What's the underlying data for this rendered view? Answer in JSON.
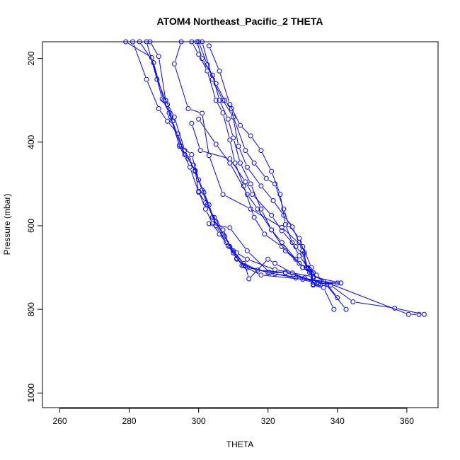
{
  "chart_data": {
    "type": "line",
    "title": "ATOM4 Northeast_Pacific_2 THETA",
    "xlabel": "THETA",
    "ylabel": "Pressure (mbar)",
    "xlim": [
      255,
      369
    ],
    "ylim": [
      1035,
      160
    ],
    "y_reversed": true,
    "x_ticks": [
      260,
      280,
      300,
      320,
      340,
      360
    ],
    "y_ticks": [
      200,
      400,
      600,
      800,
      1000
    ],
    "series_color": "#0000ff",
    "marker": "open-circle",
    "grid": false,
    "legend": "none",
    "series": [
      {
        "points": [
          [
            279,
            160
          ],
          [
            286.5,
            198
          ],
          [
            289.5,
            297
          ],
          [
            291.5,
            330
          ],
          [
            294.5,
            407
          ],
          [
            297,
            440
          ],
          [
            299,
            468
          ],
          [
            300,
            518
          ],
          [
            302,
            560
          ],
          [
            304,
            595
          ],
          [
            306,
            620
          ],
          [
            308.5,
            648
          ],
          [
            311,
            678
          ],
          [
            313,
            695
          ],
          [
            320,
            712
          ],
          [
            328,
            725
          ],
          [
            333,
            735
          ],
          [
            336,
            748
          ],
          [
            339,
            800
          ]
        ]
      },
      {
        "points": [
          [
            281,
            160
          ],
          [
            285,
            250
          ],
          [
            288.5,
            320
          ],
          [
            291,
            350
          ],
          [
            294,
            380
          ],
          [
            296,
            430
          ],
          [
            298.5,
            455
          ],
          [
            301,
            515
          ],
          [
            302.5,
            550
          ],
          [
            305,
            590
          ],
          [
            307.5,
            625
          ],
          [
            310,
            665
          ],
          [
            312.5,
            695
          ],
          [
            318,
            718
          ],
          [
            330,
            728
          ],
          [
            340,
            737
          ]
        ]
      },
      {
        "points": [
          [
            283,
            160
          ],
          [
            287,
            210
          ],
          [
            290,
            300
          ],
          [
            292,
            340
          ],
          [
            294.5,
            410
          ],
          [
            297.5,
            460
          ],
          [
            300,
            520
          ],
          [
            302,
            545
          ],
          [
            304.5,
            580
          ],
          [
            307,
            610
          ],
          [
            309,
            650
          ],
          [
            311,
            680
          ],
          [
            314,
            700
          ],
          [
            322,
            715
          ],
          [
            336,
            733
          ],
          [
            360.5,
            812
          ],
          [
            363.5,
            812
          ]
        ]
      },
      {
        "points": [
          [
            286,
            160
          ],
          [
            288.5,
            195
          ],
          [
            290.5,
            300
          ],
          [
            293,
            340
          ],
          [
            296,
            420
          ],
          [
            299,
            470
          ],
          [
            301.5,
            520
          ],
          [
            304,
            580
          ],
          [
            307,
            620
          ],
          [
            310,
            660
          ],
          [
            313,
            690
          ],
          [
            317,
            706
          ],
          [
            325,
            712
          ],
          [
            338,
            742
          ],
          [
            344.5,
            782
          ],
          [
            356.5,
            797
          ],
          [
            365,
            812
          ]
        ]
      },
      {
        "points": [
          [
            285,
            160
          ],
          [
            288,
            250
          ],
          [
            291,
            310
          ],
          [
            292.5,
            350
          ],
          [
            295,
            410
          ],
          [
            298,
            430
          ],
          [
            300,
            490
          ],
          [
            303,
            550
          ],
          [
            305,
            600
          ],
          [
            308,
            640
          ],
          [
            311,
            665
          ],
          [
            314,
            680
          ],
          [
            322,
            705
          ],
          [
            333,
            722
          ],
          [
            341,
            737
          ]
        ]
      },
      {
        "points": [
          [
            295,
            160
          ],
          [
            293,
            213
          ],
          [
            297,
            320
          ],
          [
            301,
            331
          ],
          [
            303,
            432
          ],
          [
            307,
            525
          ],
          [
            315,
            560
          ],
          [
            324,
            604
          ],
          [
            330,
            650
          ],
          [
            332.5,
            700
          ],
          [
            333,
            740
          ],
          [
            335,
            742
          ]
        ]
      },
      {
        "points": [
          [
            298,
            160
          ],
          [
            300,
            190
          ],
          [
            302.5,
            230
          ],
          [
            305,
            300
          ],
          [
            307,
            330
          ],
          [
            309,
            395
          ],
          [
            310.5,
            450
          ],
          [
            313,
            505
          ],
          [
            316,
            580
          ],
          [
            319,
            620
          ],
          [
            324,
            650
          ],
          [
            328,
            680
          ],
          [
            330,
            700
          ],
          [
            332,
            712
          ],
          [
            336,
            733
          ],
          [
            342.5,
            800
          ]
        ]
      },
      {
        "points": [
          [
            299.5,
            160
          ],
          [
            301,
            200
          ],
          [
            304,
            240
          ],
          [
            306,
            300
          ],
          [
            308.5,
            345
          ],
          [
            310,
            390
          ],
          [
            312,
            450
          ],
          [
            315,
            500
          ],
          [
            318,
            560
          ],
          [
            321,
            610
          ],
          [
            325,
            660
          ],
          [
            329,
            690
          ],
          [
            332,
            705
          ],
          [
            334,
            718
          ],
          [
            337,
            740
          ],
          [
            340,
            772
          ]
        ]
      },
      {
        "points": [
          [
            300,
            160
          ],
          [
            302.5,
            215
          ],
          [
            305,
            260
          ],
          [
            307.5,
            300
          ],
          [
            309.5,
            320
          ],
          [
            311.5,
            410
          ],
          [
            314,
            460
          ],
          [
            318,
            505
          ],
          [
            321.5,
            540
          ],
          [
            324.5,
            575
          ],
          [
            327,
            603
          ],
          [
            329,
            640
          ],
          [
            330,
            660
          ],
          [
            331.5,
            703
          ],
          [
            333,
            725
          ],
          [
            334.5,
            740
          ]
        ]
      },
      {
        "points": [
          [
            301,
            160
          ],
          [
            304,
            250
          ],
          [
            307,
            300
          ],
          [
            310,
            340
          ],
          [
            313.5,
            420
          ],
          [
            316,
            450
          ],
          [
            319.5,
            487
          ],
          [
            322,
            500
          ],
          [
            324.5,
            560
          ],
          [
            326,
            598
          ],
          [
            329,
            630
          ],
          [
            330.5,
            665
          ],
          [
            331,
            700
          ],
          [
            332.5,
            713
          ],
          [
            333,
            742
          ]
        ]
      },
      {
        "points": [
          [
            303,
            170
          ],
          [
            306,
            230
          ],
          [
            309,
            310
          ],
          [
            312,
            360
          ],
          [
            315,
            385
          ],
          [
            318,
            420
          ],
          [
            321,
            470
          ],
          [
            323.5,
            525
          ],
          [
            325,
            597
          ],
          [
            327,
            640
          ],
          [
            329,
            672
          ],
          [
            331.5,
            700
          ],
          [
            333,
            712
          ]
        ]
      },
      {
        "points": [
          [
            298,
            355
          ],
          [
            300.5,
            420
          ],
          [
            309,
            440
          ],
          [
            313.5,
            495
          ],
          [
            315.5,
            525
          ],
          [
            321,
            575
          ],
          [
            324,
            612
          ],
          [
            328,
            650
          ],
          [
            330,
            668
          ],
          [
            331,
            700
          ]
        ]
      },
      {
        "points": [
          [
            300,
            345
          ],
          [
            305,
            405
          ],
          [
            309,
            450
          ],
          [
            314,
            525
          ],
          [
            317,
            560
          ],
          [
            321,
            610
          ],
          [
            324,
            640
          ],
          [
            330,
            700
          ],
          [
            331.5,
            702
          ]
        ]
      },
      {
        "points": [
          [
            303,
            595
          ],
          [
            309,
            605
          ],
          [
            314,
            660
          ],
          [
            320.5,
            712
          ],
          [
            325,
            712
          ]
        ]
      },
      {
        "points": [
          [
            309,
            650
          ],
          [
            313.5,
            697
          ],
          [
            314.5,
            727
          ],
          [
            320,
            680
          ],
          [
            322,
            690
          ],
          [
            327,
            713
          ],
          [
            330.5,
            725
          ],
          [
            334,
            739
          ],
          [
            341,
            737
          ]
        ]
      }
    ]
  }
}
